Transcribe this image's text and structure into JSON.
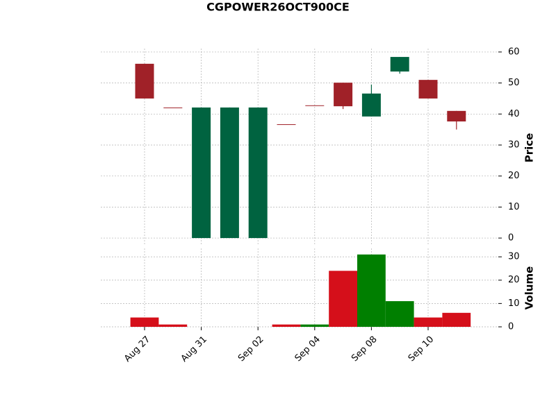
{
  "chart_data": {
    "type": "candlestick",
    "title": "CGPOWER26OCT900CE",
    "categories": [
      "Aug 27",
      null,
      "Aug 31",
      null,
      "Sep 02",
      null,
      "Sep 04",
      null,
      "Sep 08",
      null,
      "Sep 10",
      null
    ],
    "open": [
      56.2,
      42.1,
      0,
      0,
      0,
      36.7,
      42.8,
      50.1,
      39.2,
      53.7,
      51.0,
      41.0
    ],
    "high": [
      56.2,
      42.1,
      42.1,
      42.1,
      42.1,
      36.7,
      42.8,
      50.1,
      49.5,
      58.4,
      51.0,
      41.0
    ],
    "low": [
      45.0,
      42.1,
      0,
      0,
      0,
      36.7,
      42.8,
      41.6,
      39.2,
      53.0,
      45.0,
      35.0
    ],
    "close": [
      45.0,
      42.1,
      42.1,
      42.1,
      42.1,
      36.7,
      42.8,
      42.5,
      46.6,
      58.4,
      45.0,
      37.6
    ],
    "volume": [
      4,
      1,
      0,
      0,
      0,
      1,
      1,
      24,
      31,
      11,
      4,
      6
    ],
    "volume_colors": [
      "#d50f1a",
      "#d50f1a",
      "#d50f1a",
      "#d50f1a",
      "#d50f1a",
      "#d50f1a",
      "#007f00",
      "#d50f1a",
      "#007f00",
      "#007f00",
      "#d50f1a",
      "#d50f1a"
    ],
    "up_color": "#006340",
    "down_color": "#a02128",
    "ylabel": "Price",
    "ylim": [
      -2.0,
      61.1
    ],
    "yticks": [
      0,
      10,
      20,
      30,
      40,
      50,
      60
    ],
    "volume_label": "Volume",
    "volume_ylim": [
      0,
      33.6
    ],
    "volume_yticks": [
      0,
      10,
      20,
      30
    ],
    "grid": true
  }
}
